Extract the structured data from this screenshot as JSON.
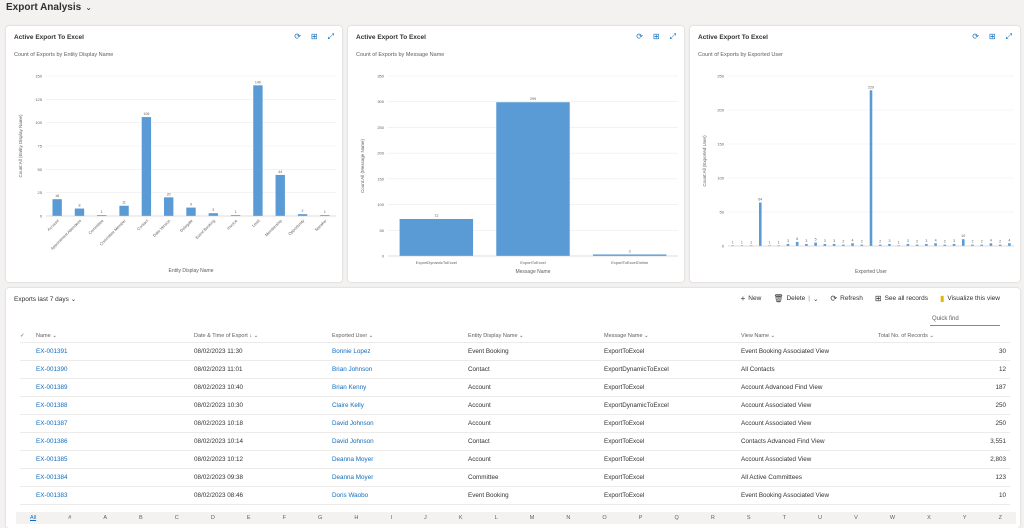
{
  "page": {
    "title": "Export Analysis"
  },
  "charts": [
    {
      "title": "Active Export To Excel",
      "subtitle": "Count of Exports by Entity Display Name",
      "chart_data": {
        "type": "bar",
        "categories": [
          "Account",
          "Appointment Attendees",
          "Committee",
          "Committee Member",
          "Contact",
          "Data Version",
          "Delegate",
          "Event Booking",
          "Invoice",
          "Lead",
          "Membership",
          "Opportunity",
          "Speaker"
        ],
        "values": [
          18,
          8,
          1,
          11,
          106,
          20,
          9,
          3,
          1,
          140,
          44,
          2,
          1
        ],
        "xlabel": "Entity Display Name",
        "ylabel": "Count:All (Entity Display Name)",
        "ylim": [
          0,
          150
        ],
        "yticks": [
          0,
          25,
          50,
          75,
          100,
          125,
          150
        ]
      }
    },
    {
      "title": "Active Export To Excel",
      "subtitle": "Count of Exports by Message Name",
      "chart_data": {
        "type": "bar",
        "categories": [
          "ExportDynamicToExcel",
          "ExportToExcel",
          "ExportToExcelOnline"
        ],
        "values": [
          72,
          299,
          3
        ],
        "xlabel": "Message Name",
        "ylabel": "Count:All (Message Name)",
        "ylim": [
          0,
          350
        ],
        "yticks": [
          0,
          50,
          100,
          150,
          200,
          250,
          300,
          350
        ]
      }
    },
    {
      "title": "Active Export To Excel",
      "subtitle": "Count of Exports by Exported User",
      "chart_data": {
        "type": "bar",
        "values": [
          1,
          1,
          1,
          64,
          1,
          1,
          3,
          6,
          3,
          5,
          3,
          3,
          2,
          4,
          2,
          229,
          2,
          3,
          1,
          3,
          2,
          3,
          4,
          2,
          3,
          10,
          2,
          2,
          4,
          2,
          4
        ],
        "xlabel": "Exported User",
        "ylabel": "Count:All (Exported User)",
        "ylim": [
          0,
          250
        ],
        "yticks": [
          0,
          50,
          100,
          150,
          200,
          250
        ]
      }
    }
  ],
  "grid": {
    "title": "Exports last 7 days",
    "commands": {
      "new": "New",
      "delete": "Delete",
      "refresh": "Refresh",
      "see_all": "See all records",
      "visualize": "Visualize this view"
    },
    "quickfind_placeholder": "Quick find",
    "columns": [
      "Name",
      "Date & Time of Export",
      "Exported User",
      "Entity Display Name",
      "Message Name",
      "View Name",
      "Total No. of Records"
    ],
    "rows": [
      [
        "EX-001391",
        "08/02/2023 11:30",
        "Bonnie Lopez",
        "Event Booking",
        "ExportToExcel",
        "Event Booking Associated View",
        "30"
      ],
      [
        "EX-001390",
        "08/02/2023 11:01",
        "Brian Johnson",
        "Contact",
        "ExportDynamicToExcel",
        "All Contacts",
        "12"
      ],
      [
        "EX-001389",
        "08/02/2023 10:40",
        "Brian Kenny",
        "Account",
        "ExportToExcel",
        "Account Advanced Find View",
        "187"
      ],
      [
        "EX-001388",
        "08/02/2023 10:30",
        "Claire Kelly",
        "Account",
        "ExportDynamicToExcel",
        "Account Associated View",
        "250"
      ],
      [
        "EX-001387",
        "08/02/2023 10:18",
        "David Johnson",
        "Account",
        "ExportToExcel",
        "Account Associated View",
        "250"
      ],
      [
        "EX-001386",
        "08/02/2023 10:14",
        "David Johnson",
        "Contact",
        "ExportToExcel",
        "Contacts Advanced Find View",
        "3,551"
      ],
      [
        "EX-001385",
        "08/02/2023 10:12",
        "Deanna Moyer",
        "Account",
        "ExportToExcel",
        "Account Associated View",
        "2,803"
      ],
      [
        "EX-001384",
        "08/02/2023 09:38",
        "Deanna Moyer",
        "Committee",
        "ExportToExcel",
        "All Active Committees",
        "123"
      ],
      [
        "EX-001383",
        "08/02/2023 08:46",
        "Doris Waobo",
        "Event Booking",
        "ExportToExcel",
        "Event Booking Associated View",
        "10"
      ]
    ],
    "jumpbar": [
      "All",
      "#",
      "A",
      "B",
      "C",
      "D",
      "E",
      "F",
      "G",
      "H",
      "I",
      "J",
      "K",
      "L",
      "M",
      "N",
      "O",
      "P",
      "Q",
      "R",
      "S",
      "T",
      "U",
      "V",
      "W",
      "X",
      "Y",
      "Z"
    ]
  },
  "colors": {
    "bar": "#5b9bd5",
    "link": "#0f6cbd"
  }
}
